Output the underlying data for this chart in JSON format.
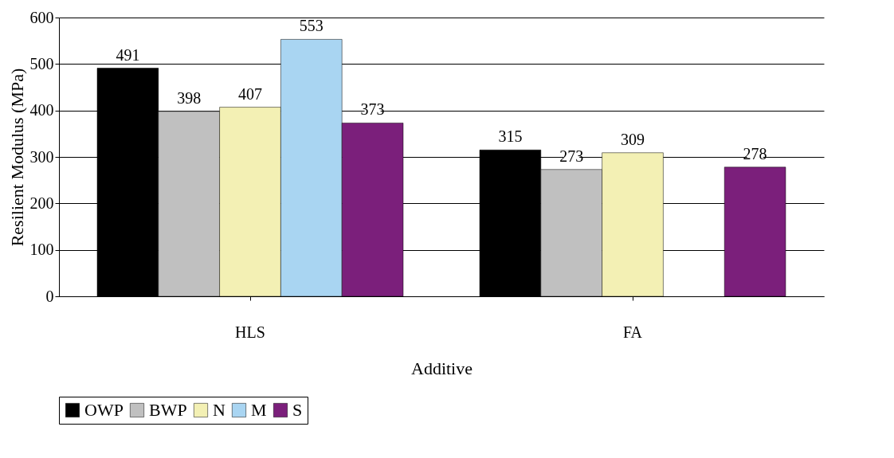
{
  "chart_data": {
    "type": "bar",
    "xlabel": "Additive",
    "ylabel": "Resilient Modulus (MPa)",
    "categories": [
      "HLS",
      "FA"
    ],
    "series": [
      {
        "name": "OWP",
        "color": "#000000",
        "values": [
          491,
          315
        ]
      },
      {
        "name": "BWP",
        "color": "#c0c0c0",
        "values": [
          398,
          273
        ]
      },
      {
        "name": "N",
        "color": "#f3f0b4",
        "values": [
          407,
          309
        ]
      },
      {
        "name": "M",
        "color": "#a9d5f2",
        "values": [
          553,
          null
        ]
      },
      {
        "name": "S",
        "color": "#7b1f7b",
        "values": [
          373,
          278
        ]
      }
    ],
    "ylim": [
      0,
      600
    ],
    "yticks": [
      0,
      100,
      200,
      300,
      400,
      500,
      600
    ],
    "grid": "y",
    "legend": "bottom",
    "data_labels": true
  }
}
